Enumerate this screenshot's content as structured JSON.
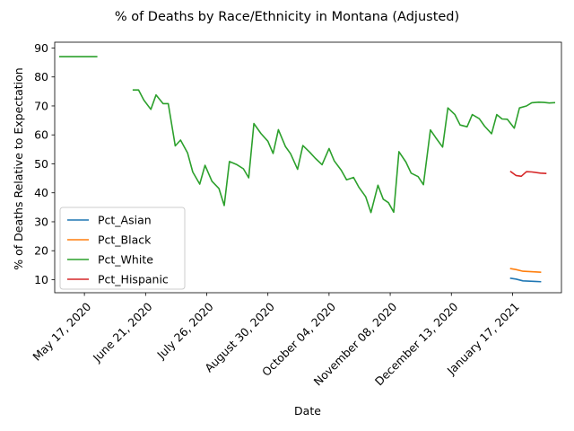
{
  "chart_data": {
    "type": "line",
    "title": "% of Deaths by Race/Ethnicity in Montana (Adjusted)",
    "xlabel": "Date",
    "ylabel": "% of Deaths Relative to Expectation",
    "x_ticks": [
      "2020-05-17",
      "2020-06-21",
      "2020-07-26",
      "2020-08-30",
      "2020-10-04",
      "2020-11-08",
      "2020-12-13",
      "2021-01-17"
    ],
    "x_tick_labels": [
      "May 17, 2020",
      "June 21, 2020",
      "July 26, 2020",
      "August 30, 2020",
      "October 04, 2020",
      "November 08, 2020",
      "December 13, 2020",
      "January 17, 2021"
    ],
    "xlim": [
      "2020-04-26",
      "2021-02-07"
    ],
    "ylim": [
      5.5,
      92
    ],
    "y_ticks": [
      10,
      20,
      30,
      40,
      50,
      60,
      70,
      80,
      90
    ],
    "legend": "lower-left",
    "grid": false,
    "series": [
      {
        "name": "Pct_Asian",
        "color": "#1f77b4",
        "points": [
          [
            "2021-01-16",
            10.5
          ],
          [
            "2021-01-19",
            10.2
          ],
          [
            "2021-01-23",
            9.6
          ],
          [
            "2021-01-30",
            9.4
          ],
          [
            "2021-02-02",
            9.3
          ]
        ]
      },
      {
        "name": "Pct_Black",
        "color": "#ff7f0e",
        "points": [
          [
            "2021-01-16",
            13.8
          ],
          [
            "2021-01-19",
            13.5
          ],
          [
            "2021-01-23",
            12.9
          ],
          [
            "2021-01-30",
            12.7
          ],
          [
            "2021-02-02",
            12.6
          ]
        ]
      },
      {
        "name": "Pct_White",
        "color": "#2ca02c",
        "segments": [
          [
            [
              "2020-05-03",
              87.0
            ],
            [
              "2020-05-24",
              87.0
            ]
          ],
          [
            [
              "2020-06-14",
              75.5
            ],
            [
              "2020-06-17",
              75.5
            ],
            [
              "2020-06-20",
              72
            ],
            [
              "2020-06-24",
              68.8
            ],
            [
              "2020-06-27",
              73.8
            ],
            [
              "2020-07-01",
              70.8
            ],
            [
              "2020-07-04",
              70.8
            ],
            [
              "2020-07-08",
              56.2
            ],
            [
              "2020-07-11",
              58.2
            ],
            [
              "2020-07-15",
              53.8
            ],
            [
              "2020-07-18",
              47.2
            ],
            [
              "2020-07-22",
              43.0
            ],
            [
              "2020-07-25",
              49.5
            ],
            [
              "2020-07-29",
              44.0
            ],
            [
              "2020-08-02",
              41.5
            ],
            [
              "2020-08-05",
              35.6
            ],
            [
              "2020-08-08",
              50.8
            ],
            [
              "2020-08-12",
              49.8
            ],
            [
              "2020-08-16",
              48.3
            ],
            [
              "2020-08-19",
              45.2
            ],
            [
              "2020-08-22",
              63.9
            ],
            [
              "2020-08-26",
              60.5
            ],
            [
              "2020-08-30",
              57.8
            ],
            [
              "2020-09-02",
              53.6
            ],
            [
              "2020-09-05",
              61.8
            ],
            [
              "2020-09-09",
              56.0
            ],
            [
              "2020-09-12",
              53.5
            ],
            [
              "2020-09-16",
              48.1
            ],
            [
              "2020-09-19",
              56.3
            ],
            [
              "2020-09-23",
              54.0
            ],
            [
              "2020-09-26",
              52.0
            ],
            [
              "2020-09-30",
              49.7
            ],
            [
              "2020-10-04",
              55.3
            ],
            [
              "2020-10-07",
              51.0
            ],
            [
              "2020-10-11",
              47.8
            ],
            [
              "2020-10-14",
              44.5
            ],
            [
              "2020-10-18",
              45.3
            ],
            [
              "2020-10-21",
              42.0
            ],
            [
              "2020-10-25",
              38.6
            ],
            [
              "2020-10-28",
              33.2
            ],
            [
              "2020-11-01",
              42.6
            ],
            [
              "2020-11-04",
              37.8
            ],
            [
              "2020-11-07",
              36.6
            ],
            [
              "2020-11-10",
              33.3
            ],
            [
              "2020-11-13",
              54.2
            ],
            [
              "2020-11-17",
              50.6
            ],
            [
              "2020-11-20",
              46.8
            ],
            [
              "2020-11-24",
              45.6
            ],
            [
              "2020-11-27",
              42.8
            ],
            [
              "2020-12-01",
              61.7
            ],
            [
              "2020-12-04",
              59.1
            ],
            [
              "2020-12-08",
              55.8
            ],
            [
              "2020-12-11",
              69.3
            ],
            [
              "2020-12-15",
              67.0
            ],
            [
              "2020-12-18",
              63.4
            ],
            [
              "2020-12-22",
              62.8
            ],
            [
              "2020-12-25",
              67.0
            ],
            [
              "2020-12-29",
              65.6
            ],
            [
              "2021-01-01",
              63.0
            ],
            [
              "2021-01-05",
              60.4
            ],
            [
              "2021-01-08",
              67.0
            ],
            [
              "2021-01-11",
              65.5
            ],
            [
              "2021-01-14",
              65.4
            ],
            [
              "2021-01-18",
              62.3
            ],
            [
              "2021-01-21",
              69.3
            ],
            [
              "2021-01-25",
              70.0
            ],
            [
              "2021-01-28",
              71.1
            ],
            [
              "2021-02-01",
              71.3
            ],
            [
              "2021-02-04",
              71.2
            ],
            [
              "2021-02-07",
              71.0
            ],
            [
              "2021-02-10",
              71.1
            ]
          ]
        ]
      },
      {
        "name": "Pct_Hispanic",
        "color": "#d62728",
        "points": [
          [
            "2021-01-16",
            47.3
          ],
          [
            "2021-01-19",
            46.0
          ],
          [
            "2021-01-22",
            45.7
          ],
          [
            "2021-01-25",
            47.3
          ],
          [
            "2021-01-28",
            47.2
          ],
          [
            "2021-02-02",
            46.8
          ],
          [
            "2021-02-05",
            46.7
          ]
        ]
      }
    ]
  }
}
